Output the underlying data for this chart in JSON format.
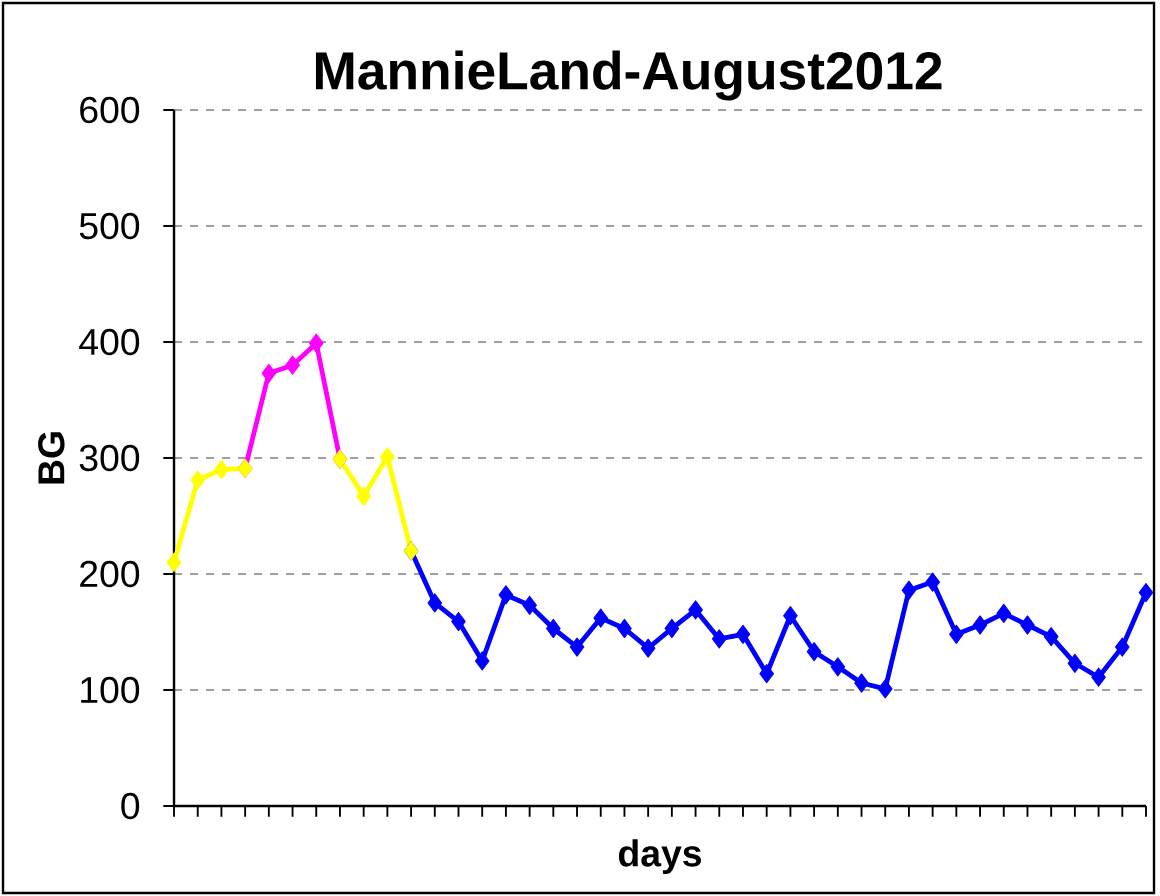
{
  "chart_data": {
    "type": "line",
    "title": "MannieLand-August2012",
    "xlabel": "days",
    "ylabel": "BG",
    "categories": [
      null,
      null,
      null,
      null,
      null,
      null,
      null,
      null,
      null,
      null,
      null,
      null,
      null,
      null,
      null,
      null,
      null,
      null,
      null,
      null,
      null,
      null,
      null,
      null,
      null,
      null,
      null,
      null,
      null,
      null,
      null,
      null,
      null,
      null,
      null,
      null,
      null,
      null,
      null,
      null,
      null,
      null
    ],
    "ylim": [
      0,
      600
    ],
    "yticks": [
      0,
      100,
      200,
      300,
      400,
      500,
      600
    ],
    "grid": "y",
    "marker": "diamond",
    "line_style": "solid",
    "tick_labels": "y",
    "series": [
      {
        "color": "#ff00ff",
        "values": [
          null,
          null,
          null,
          291,
          373,
          380,
          399,
          299,
          null,
          null,
          null,
          null,
          null,
          null,
          null,
          null,
          null,
          null,
          null,
          null,
          null,
          null,
          null,
          null,
          null,
          null,
          null,
          null,
          null,
          null,
          null,
          null,
          null,
          null,
          null,
          null,
          null,
          null,
          null,
          null,
          null,
          null
        ]
      },
      {
        "color": "#0000ff",
        "values": [
          null,
          null,
          null,
          null,
          null,
          null,
          null,
          null,
          null,
          null,
          220,
          175,
          159,
          125,
          182,
          173,
          153,
          137,
          162,
          153,
          136,
          153,
          169,
          144,
          148,
          114,
          164,
          133,
          120,
          106,
          101,
          186,
          193,
          148,
          156,
          166,
          156,
          146,
          123,
          111,
          137,
          184
        ]
      },
      {
        "color": "#ffff00",
        "values": [
          210,
          281,
          290,
          291,
          null,
          null,
          null,
          299,
          267,
          301,
          220,
          null,
          null,
          null,
          null,
          null,
          null,
          null,
          null,
          null,
          null,
          null,
          null,
          null,
          null,
          null,
          null,
          null,
          null,
          null,
          null,
          null,
          null,
          null,
          null,
          null,
          null,
          null,
          null,
          null,
          null,
          null
        ]
      }
    ]
  }
}
